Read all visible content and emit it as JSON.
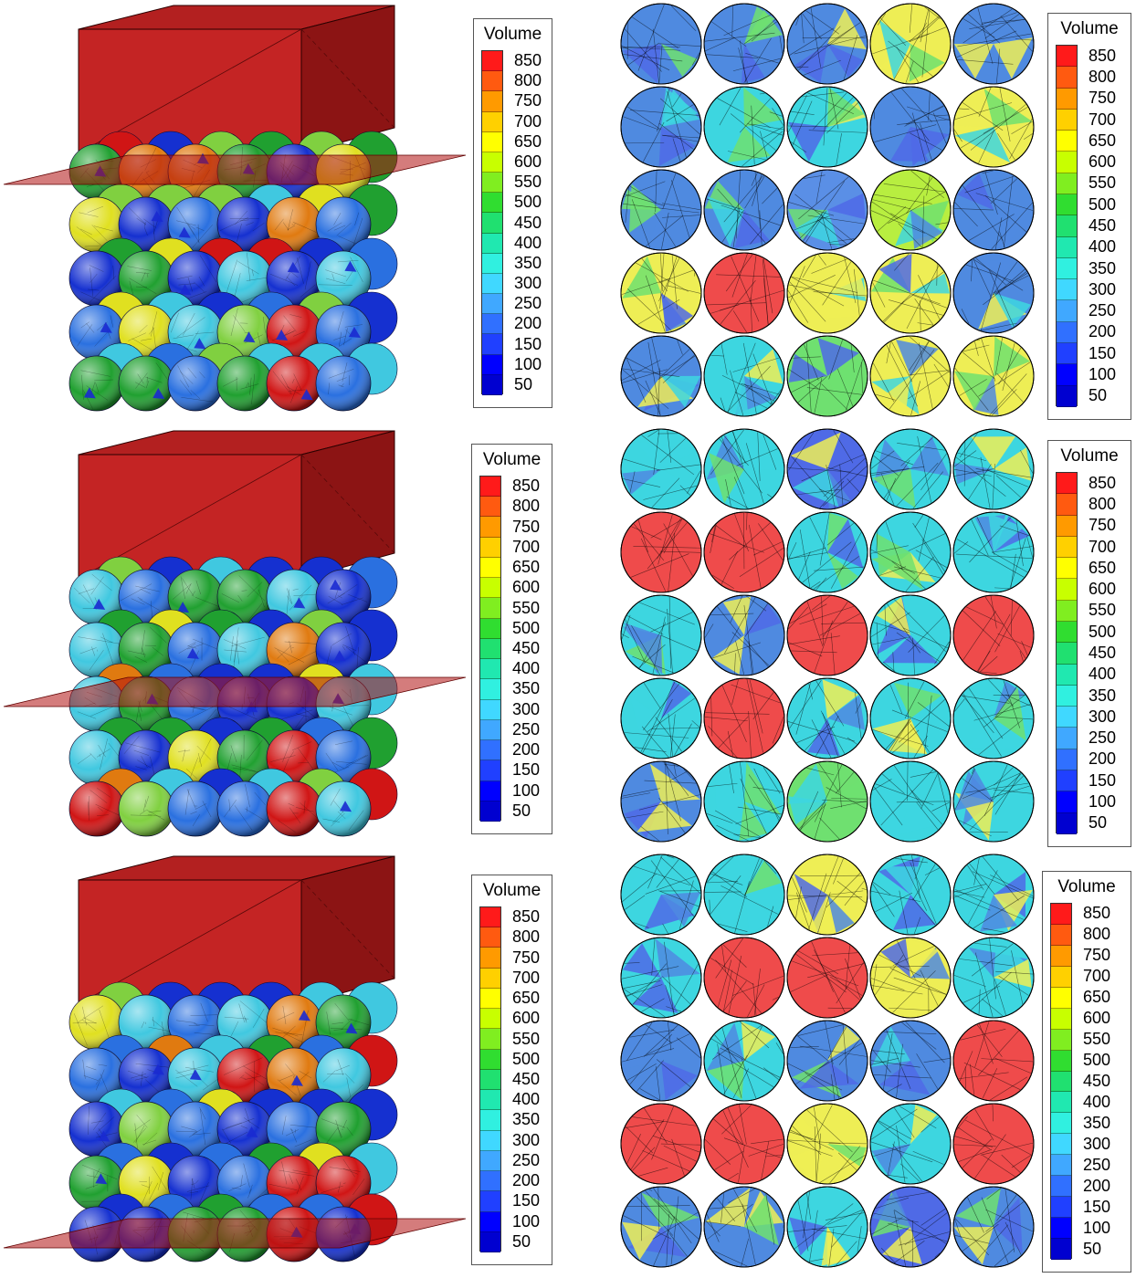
{
  "legend": {
    "title": "Volume",
    "ticks": [
      "850",
      "800",
      "750",
      "700",
      "650",
      "600",
      "550",
      "500",
      "450",
      "400",
      "350",
      "300",
      "250",
      "200",
      "150",
      "100",
      "50"
    ],
    "colors": [
      "#ff1a1a",
      "#ff5a10",
      "#ff9a00",
      "#ffd000",
      "#ffff00",
      "#c8ff00",
      "#80ee20",
      "#30dd30",
      "#20e070",
      "#20e8b0",
      "#30f0e0",
      "#40d8ff",
      "#40a8ff",
      "#3070ff",
      "#2040ff",
      "#0000ff",
      "#0000d0"
    ]
  },
  "panels": [
    {
      "slice_position": "top",
      "grid": [
        [
          "#4f8ae0",
          "#4f8ae0",
          "#4f8ae0",
          "#eeee55",
          "#4f8ae0"
        ],
        [
          "#4f8ae0",
          "#3dd6e0",
          "#3dd6e0",
          "#4f8ae0",
          "#eeee55"
        ],
        [
          "#4f8ae0",
          "#4f8ae0",
          "#5a8fe6",
          "#b8ee40",
          "#4f8ae0"
        ],
        [
          "#eeee55",
          "#ef4b4b",
          "#eeee55",
          "#eeee55",
          "#4f8ae0"
        ],
        [
          "#4f8ae0",
          "#3dd6e0",
          "#6fe070",
          "#eeee55",
          "#eeee55"
        ]
      ]
    },
    {
      "slice_position": "middle",
      "grid": [
        [
          "#3dd6e0",
          "#3dd6e0",
          "#4f6ae6",
          "#3dd6e0",
          "#3dd6e0"
        ],
        [
          "#ef4b4b",
          "#ef4b4b",
          "#3dd6e0",
          "#3dd6e0",
          "#3dd6e0"
        ],
        [
          "#3dd6e0",
          "#4f8ae0",
          "#ef4b4b",
          "#3dd6e0",
          "#ef4b4b"
        ],
        [
          "#3dd6e0",
          "#ef4b4b",
          "#3dd6e0",
          "#3dd6e0",
          "#3dd6e0"
        ],
        [
          "#4f8ae0",
          "#3dd6e0",
          "#6fe070",
          "#3dd6e0",
          "#3dd6e0"
        ]
      ]
    },
    {
      "slice_position": "bottom",
      "grid": [
        [
          "#3dd6e0",
          "#3dd6e0",
          "#eeee55",
          "#3dd6e0",
          "#3dd6e0"
        ],
        [
          "#3dd6e0",
          "#ef4b4b",
          "#ef4b4b",
          "#eeee55",
          "#3dd6e0"
        ],
        [
          "#4f8ae0",
          "#3dd6e0",
          "#4f8ae0",
          "#4f8ae0",
          "#ef4b4b"
        ],
        [
          "#ef4b4b",
          "#ef4b4b",
          "#eeee55",
          "#3dd6e0",
          "#ef4b4b"
        ],
        [
          "#4f8ae0",
          "#4f8ae0",
          "#3dd6e0",
          "#4f6ae6",
          "#4f8ae0"
        ]
      ]
    }
  ],
  "sphere_colors": [
    "#1530d0",
    "#20a030",
    "#40c8e0",
    "#e0e020",
    "#e07a10",
    "#d01515",
    "#80d040",
    "#2a70e0"
  ]
}
